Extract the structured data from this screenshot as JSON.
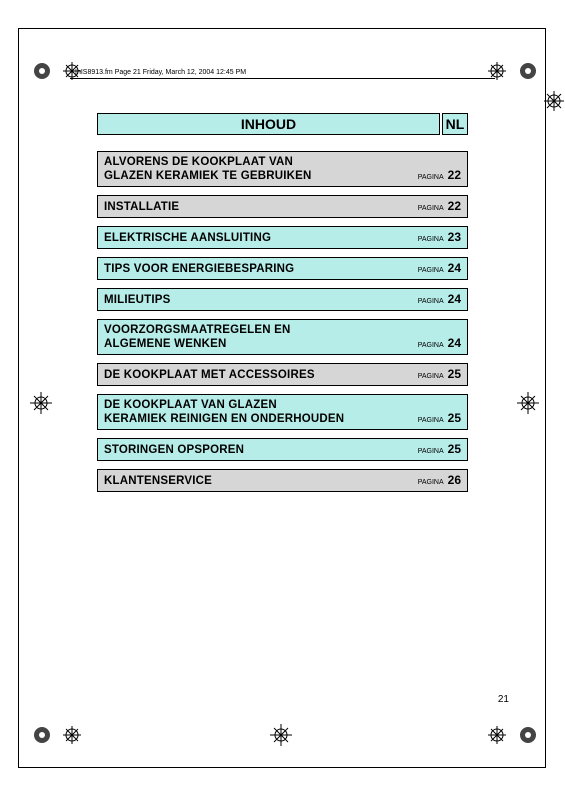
{
  "meta_header": "IhIS8913.fm  Page 21  Friday, March 12, 2004  12:45 PM",
  "page_number": "21",
  "colors": {
    "teal": "#b6ede9",
    "grey": "#d6d6d6",
    "border": "#000000",
    "background": "#ffffff"
  },
  "title": {
    "label": "INHOUD",
    "lang": "NL"
  },
  "page_label": "PAGINA",
  "entries": [
    {
      "title": "ALVORENS DE KOOKPLAAT VAN\nGLAZEN KERAMIEK TE GEBRUIKEN",
      "page": "22",
      "style": "grey",
      "multiline": true
    },
    {
      "title": "INSTALLATIE",
      "page": "22",
      "style": "grey",
      "multiline": false
    },
    {
      "title": "ELEKTRISCHE AANSLUITING",
      "page": "23",
      "style": "teal",
      "multiline": false
    },
    {
      "title": "TIPS VOOR ENERGIEBESPARING",
      "page": "24",
      "style": "teal",
      "multiline": false
    },
    {
      "title": "MILIEUTIPS",
      "page": "24",
      "style": "teal",
      "multiline": false
    },
    {
      "title": "VOORZORGSMAATREGELEN EN\nALGEMENE WENKEN",
      "page": "24",
      "style": "teal",
      "multiline": true
    },
    {
      "title": "DE KOOKPLAAT MET ACCESSOIRES",
      "page": "25",
      "style": "grey",
      "multiline": false
    },
    {
      "title": "DE KOOKPLAAT VAN GLAZEN\nKERAMIEK REINIGEN EN ONDERHOUDEN",
      "page": "25",
      "style": "teal",
      "multiline": true
    },
    {
      "title": "STORINGEN OPSPOREN",
      "page": "25",
      "style": "teal",
      "multiline": false
    },
    {
      "title": "KLANTENSERVICE",
      "page": "26",
      "style": "grey",
      "multiline": false
    }
  ]
}
